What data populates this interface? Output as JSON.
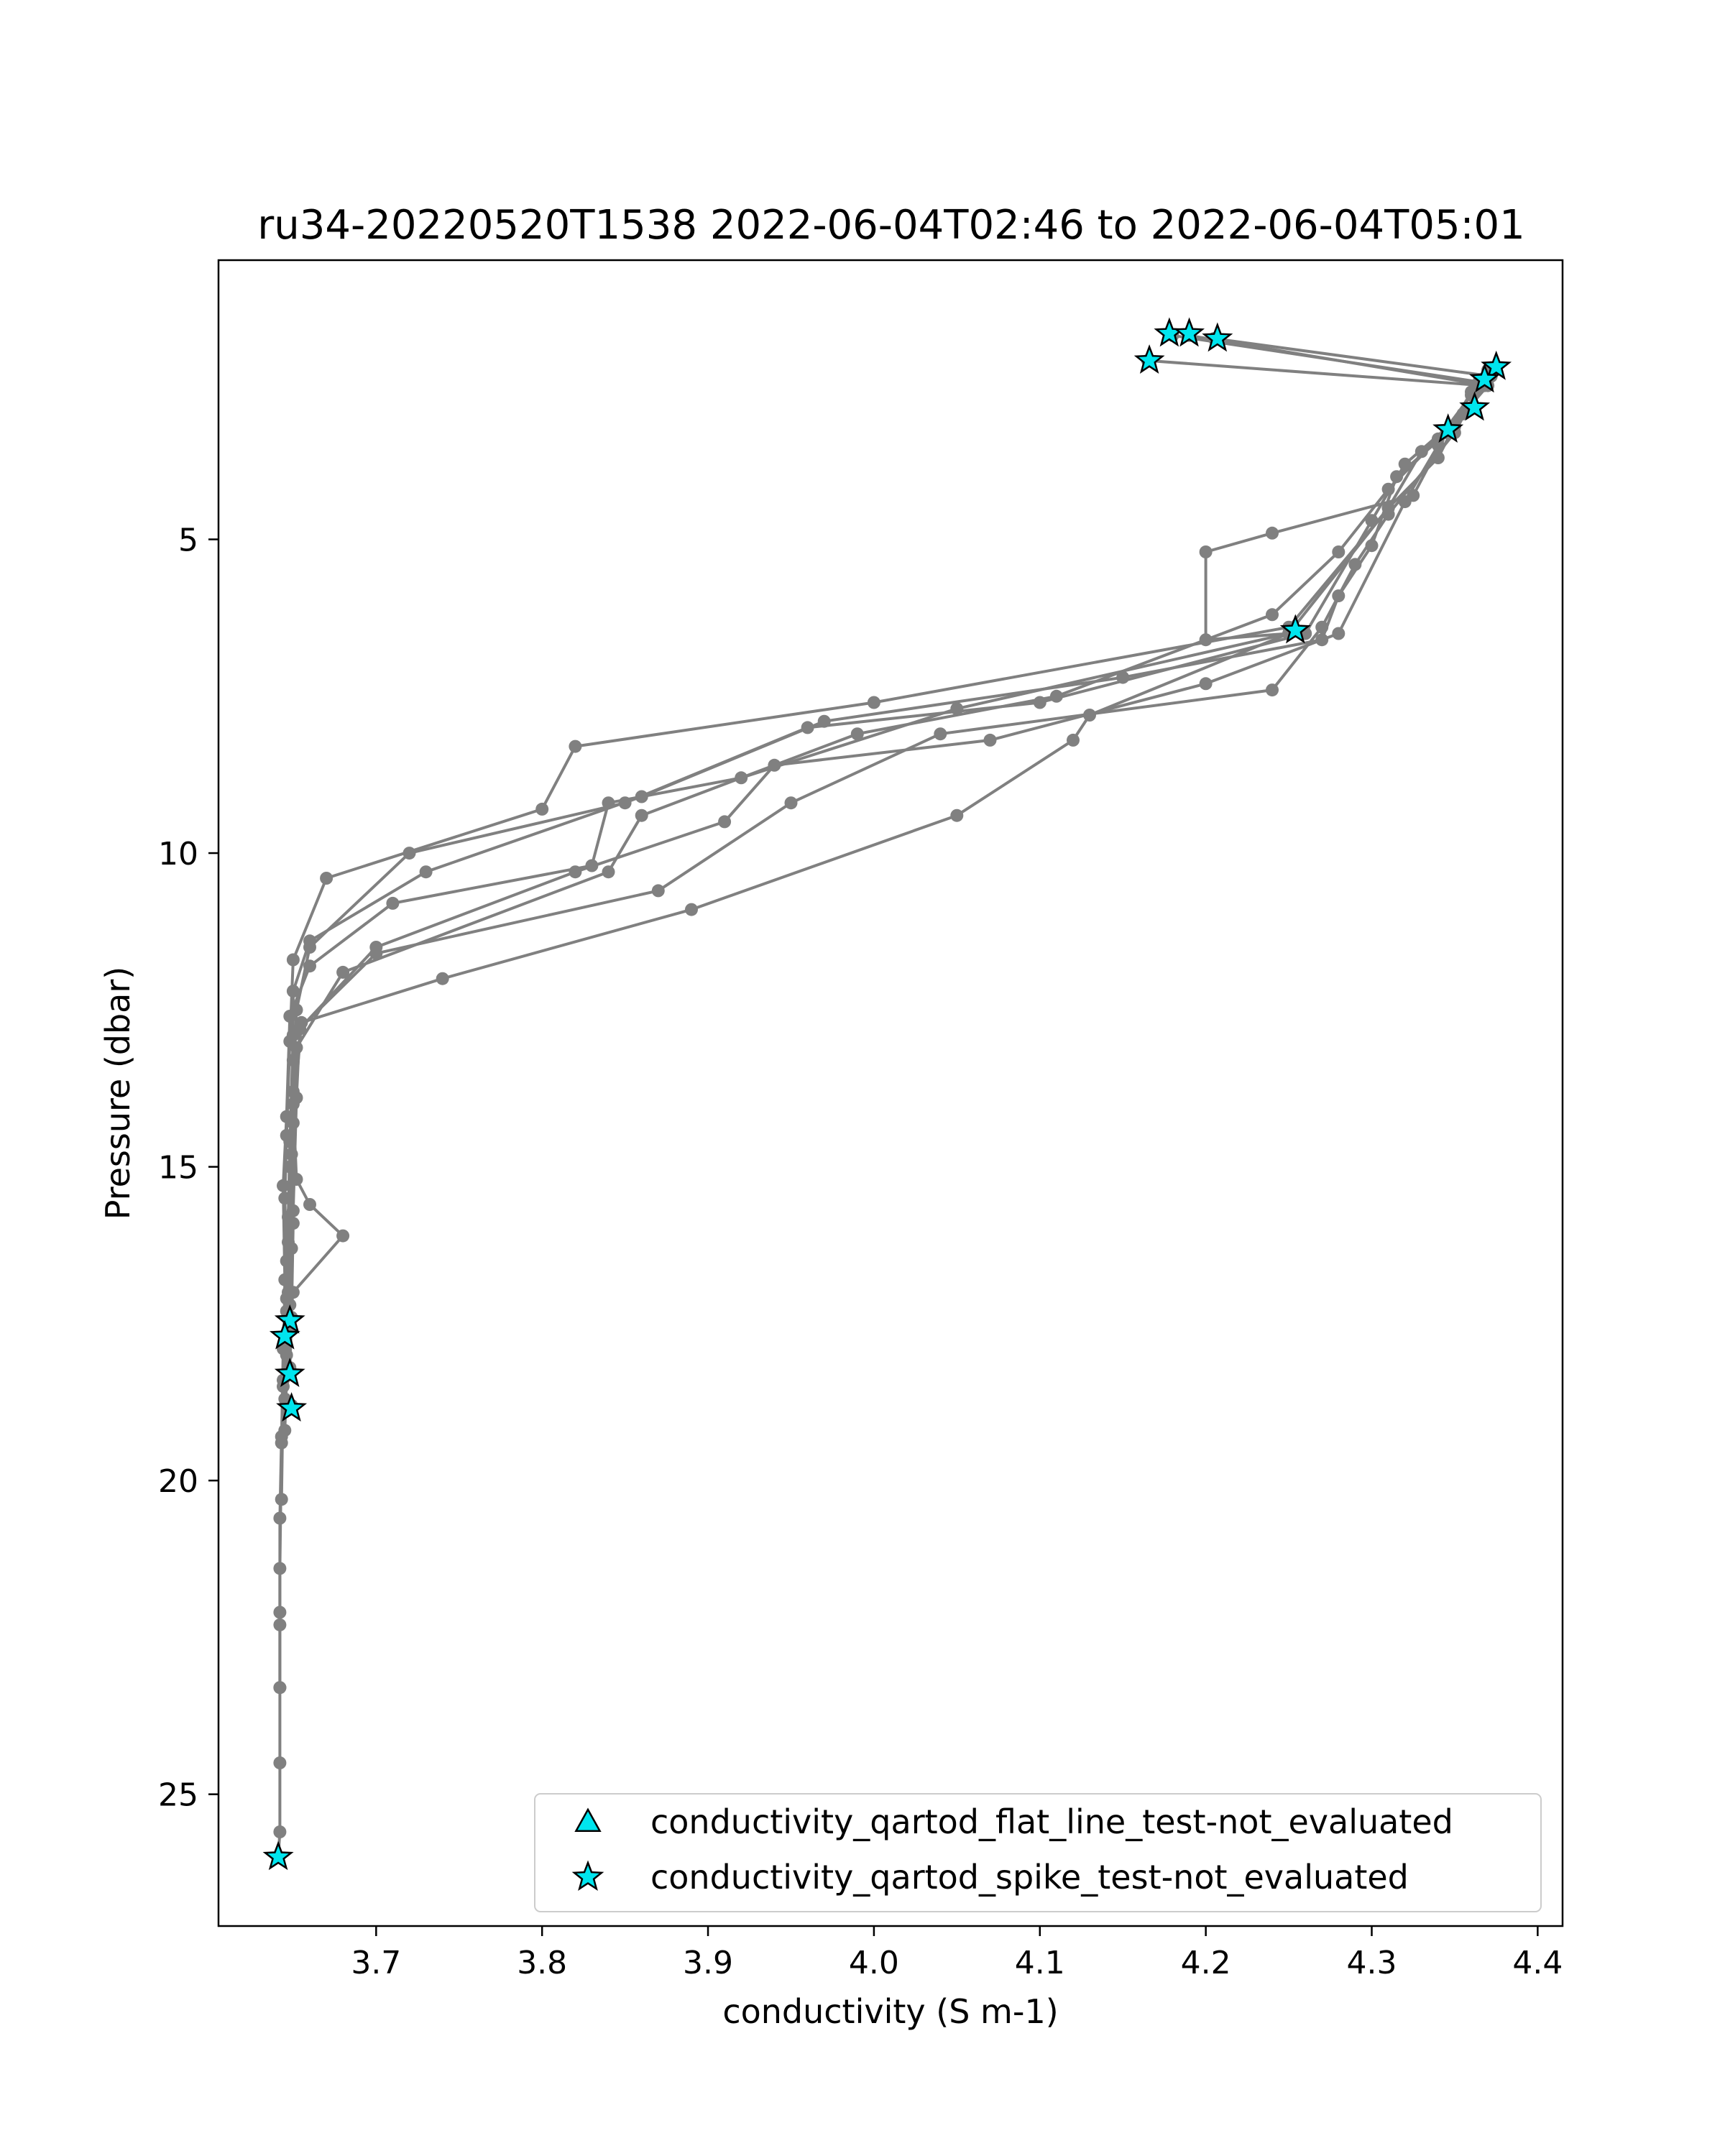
{
  "chart_data": {
    "type": "scatter",
    "title": "ru34-20220520T1538 2022-06-04T02:46 to 2022-06-04T05:01",
    "xlabel": "conductivity (S m-1)",
    "ylabel": "Pressure (dbar)",
    "xlim": [
      3.605,
      4.415
    ],
    "ylim": [
      27.1,
      0.55
    ],
    "y_inverted": true,
    "xticks": [
      3.7,
      3.8,
      3.9,
      4.0,
      4.1,
      4.2,
      4.3,
      4.4
    ],
    "xtick_labels": [
      "3.7",
      "3.8",
      "3.9",
      "4.0",
      "4.1",
      "4.2",
      "4.3",
      "4.4"
    ],
    "yticks": [
      5,
      10,
      15,
      20,
      25
    ],
    "ytick_labels": [
      "5",
      "10",
      "15",
      "20",
      "25"
    ],
    "grid": false,
    "legend_position": "lower-right",
    "colors": {
      "profile_line": "#808080",
      "marker_fill": "#00e5ee",
      "marker_edge": "#000000"
    },
    "legend": [
      {
        "label": "conductivity_qartod_flat_line_test-not_evaluated",
        "marker": "triangle"
      },
      {
        "label": "conductivity_qartod_spike_test-not_evaluated",
        "marker": "star"
      }
    ],
    "series": [
      {
        "points": [
          [
            4.18,
            1.75
          ],
          [
            4.367,
            2.5
          ],
          [
            4.36,
            2.9
          ],
          [
            4.33,
            3.6
          ],
          [
            4.31,
            4.5
          ],
          [
            4.25,
            6.4
          ],
          [
            4.0,
            7.6
          ],
          [
            3.82,
            8.3
          ],
          [
            3.8,
            9.3
          ],
          [
            3.67,
            10.4
          ],
          [
            3.65,
            11.7
          ],
          [
            3.648,
            13.0
          ],
          [
            3.646,
            14.5
          ],
          [
            3.645,
            15.5
          ],
          [
            3.646,
            16.5
          ],
          [
            3.646,
            17.3
          ],
          [
            3.645,
            17.8
          ],
          [
            3.644,
            18.4
          ],
          [
            3.643,
            19.3
          ],
          [
            3.642,
            20.6
          ],
          [
            3.642,
            22.1
          ],
          [
            3.642,
            23.3
          ],
          [
            3.642,
            24.5
          ],
          [
            3.642,
            25.6
          ],
          [
            3.641,
            26.0
          ]
        ]
      },
      {
        "points": [
          [
            4.19,
            1.75
          ],
          [
            4.37,
            2.55
          ],
          [
            4.355,
            3.0
          ],
          [
            4.32,
            3.8
          ],
          [
            4.3,
            4.7
          ],
          [
            4.26,
            6.5
          ],
          [
            4.1,
            7.6
          ],
          [
            3.96,
            8.0
          ],
          [
            3.85,
            9.2
          ],
          [
            3.72,
            10.0
          ],
          [
            3.66,
            11.5
          ],
          [
            3.652,
            12.5
          ],
          [
            3.65,
            13.8
          ],
          [
            3.648,
            15.0
          ],
          [
            3.647,
            16.2
          ],
          [
            3.648,
            17.5
          ],
          [
            3.644,
            17.9
          ],
          [
            3.643,
            19.4
          ],
          [
            3.642,
            21.4
          ],
          [
            3.642,
            22.3
          ],
          [
            3.642,
            23.3
          ]
        ]
      },
      {
        "points": [
          [
            4.205,
            1.8
          ],
          [
            4.372,
            2.4
          ],
          [
            4.35,
            3.2
          ],
          [
            4.315,
            4.0
          ],
          [
            4.3,
            5.1
          ],
          [
            4.28,
            5.9
          ],
          [
            4.27,
            6.6
          ],
          [
            4.15,
            7.2
          ],
          [
            3.97,
            7.9
          ],
          [
            3.86,
            9.1
          ],
          [
            3.73,
            10.3
          ],
          [
            3.66,
            11.4
          ],
          [
            3.65,
            12.2
          ],
          [
            3.65,
            13.3
          ],
          [
            3.649,
            14.8
          ],
          [
            3.65,
            15.9
          ],
          [
            3.649,
            17.4
          ],
          [
            3.648,
            18.2
          ]
        ]
      },
      {
        "points": [
          [
            4.165,
            2.15
          ],
          [
            4.368,
            2.55
          ],
          [
            4.345,
            3.3
          ],
          [
            4.325,
            4.3
          ],
          [
            4.24,
            4.9
          ],
          [
            4.2,
            5.2
          ],
          [
            4.2,
            6.6
          ],
          [
            4.25,
            6.5
          ],
          [
            4.05,
            7.7
          ],
          [
            3.92,
            8.8
          ],
          [
            3.84,
            9.2
          ],
          [
            3.83,
            10.2
          ],
          [
            3.71,
            10.8
          ],
          [
            3.66,
            11.8
          ],
          [
            3.648,
            12.6
          ],
          [
            3.646,
            14.2
          ],
          [
            3.644,
            15.3
          ],
          [
            3.645,
            16.8
          ],
          [
            3.644,
            18.5
          ],
          [
            3.643,
            20.3
          ]
        ]
      },
      {
        "points": [
          [
            4.375,
            2.25
          ],
          [
            4.36,
            2.7
          ],
          [
            4.34,
            3.4
          ],
          [
            4.31,
            4.2
          ],
          [
            4.28,
            5.2
          ],
          [
            4.24,
            6.2
          ],
          [
            4.11,
            7.5
          ],
          [
            3.99,
            8.1
          ],
          [
            3.86,
            9.4
          ],
          [
            3.84,
            10.3
          ],
          [
            3.68,
            11.9
          ],
          [
            3.652,
            13.1
          ],
          [
            3.65,
            14.0
          ],
          [
            3.652,
            15.2
          ],
          [
            3.66,
            15.6
          ],
          [
            3.68,
            16.1
          ],
          [
            3.65,
            17.0
          ],
          [
            3.647,
            17.6
          ],
          [
            3.645,
            19.2
          ]
        ]
      },
      {
        "points": [
          [
            4.37,
            2.3
          ],
          [
            4.35,
            3.3
          ],
          [
            4.31,
            4.6
          ],
          [
            4.29,
            5.4
          ],
          [
            4.27,
            6.4
          ],
          [
            4.24,
            7.4
          ],
          [
            4.04,
            8.1
          ],
          [
            3.95,
            9.2
          ],
          [
            3.87,
            10.6
          ],
          [
            3.7,
            11.6
          ],
          [
            3.65,
            12.9
          ],
          [
            3.648,
            14.6
          ],
          [
            3.647,
            15.8
          ],
          [
            3.646,
            17.1
          ],
          [
            3.645,
            18.7
          ],
          [
            3.649,
            18.8
          ]
        ]
      },
      {
        "points": [
          [
            4.365,
            2.45
          ],
          [
            4.34,
            3.5
          ],
          [
            4.32,
            4.4
          ],
          [
            4.28,
            6.5
          ],
          [
            4.2,
            7.3
          ],
          [
            4.07,
            8.2
          ],
          [
            3.94,
            8.6
          ],
          [
            3.91,
            9.5
          ],
          [
            3.82,
            10.3
          ],
          [
            3.7,
            11.5
          ],
          [
            3.654,
            12.8
          ],
          [
            3.652,
            13.9
          ],
          [
            3.65,
            15.7
          ],
          [
            3.649,
            16.3
          ],
          [
            3.648,
            17.2
          ]
        ]
      },
      {
        "points": [
          [
            4.36,
            2.65
          ],
          [
            4.34,
            3.7
          ],
          [
            4.31,
            4.5
          ],
          [
            4.25,
            6.5
          ],
          [
            4.13,
            7.8
          ],
          [
            4.12,
            8.2
          ],
          [
            4.05,
            9.4
          ],
          [
            3.89,
            10.9
          ],
          [
            3.74,
            12.0
          ],
          [
            3.655,
            12.7
          ],
          [
            3.65,
            14.3
          ],
          [
            3.648,
            15.9
          ],
          [
            3.647,
            17.0
          ],
          [
            3.646,
            18.0
          ]
        ]
      }
    ],
    "flat_line_test_not_evaluated": [],
    "spike_test_not_evaluated": [
      [
        4.178,
        1.72
      ],
      [
        4.19,
        1.72
      ],
      [
        4.207,
        1.8
      ],
      [
        4.166,
        2.15
      ],
      [
        4.375,
        2.25
      ],
      [
        4.368,
        2.45
      ],
      [
        4.362,
        2.9
      ],
      [
        4.346,
        3.25
      ],
      [
        4.254,
        6.45
      ],
      [
        3.648,
        17.45
      ],
      [
        3.645,
        17.7
      ],
      [
        3.648,
        18.3
      ],
      [
        3.649,
        18.85
      ],
      [
        3.641,
        26.0
      ]
    ]
  }
}
